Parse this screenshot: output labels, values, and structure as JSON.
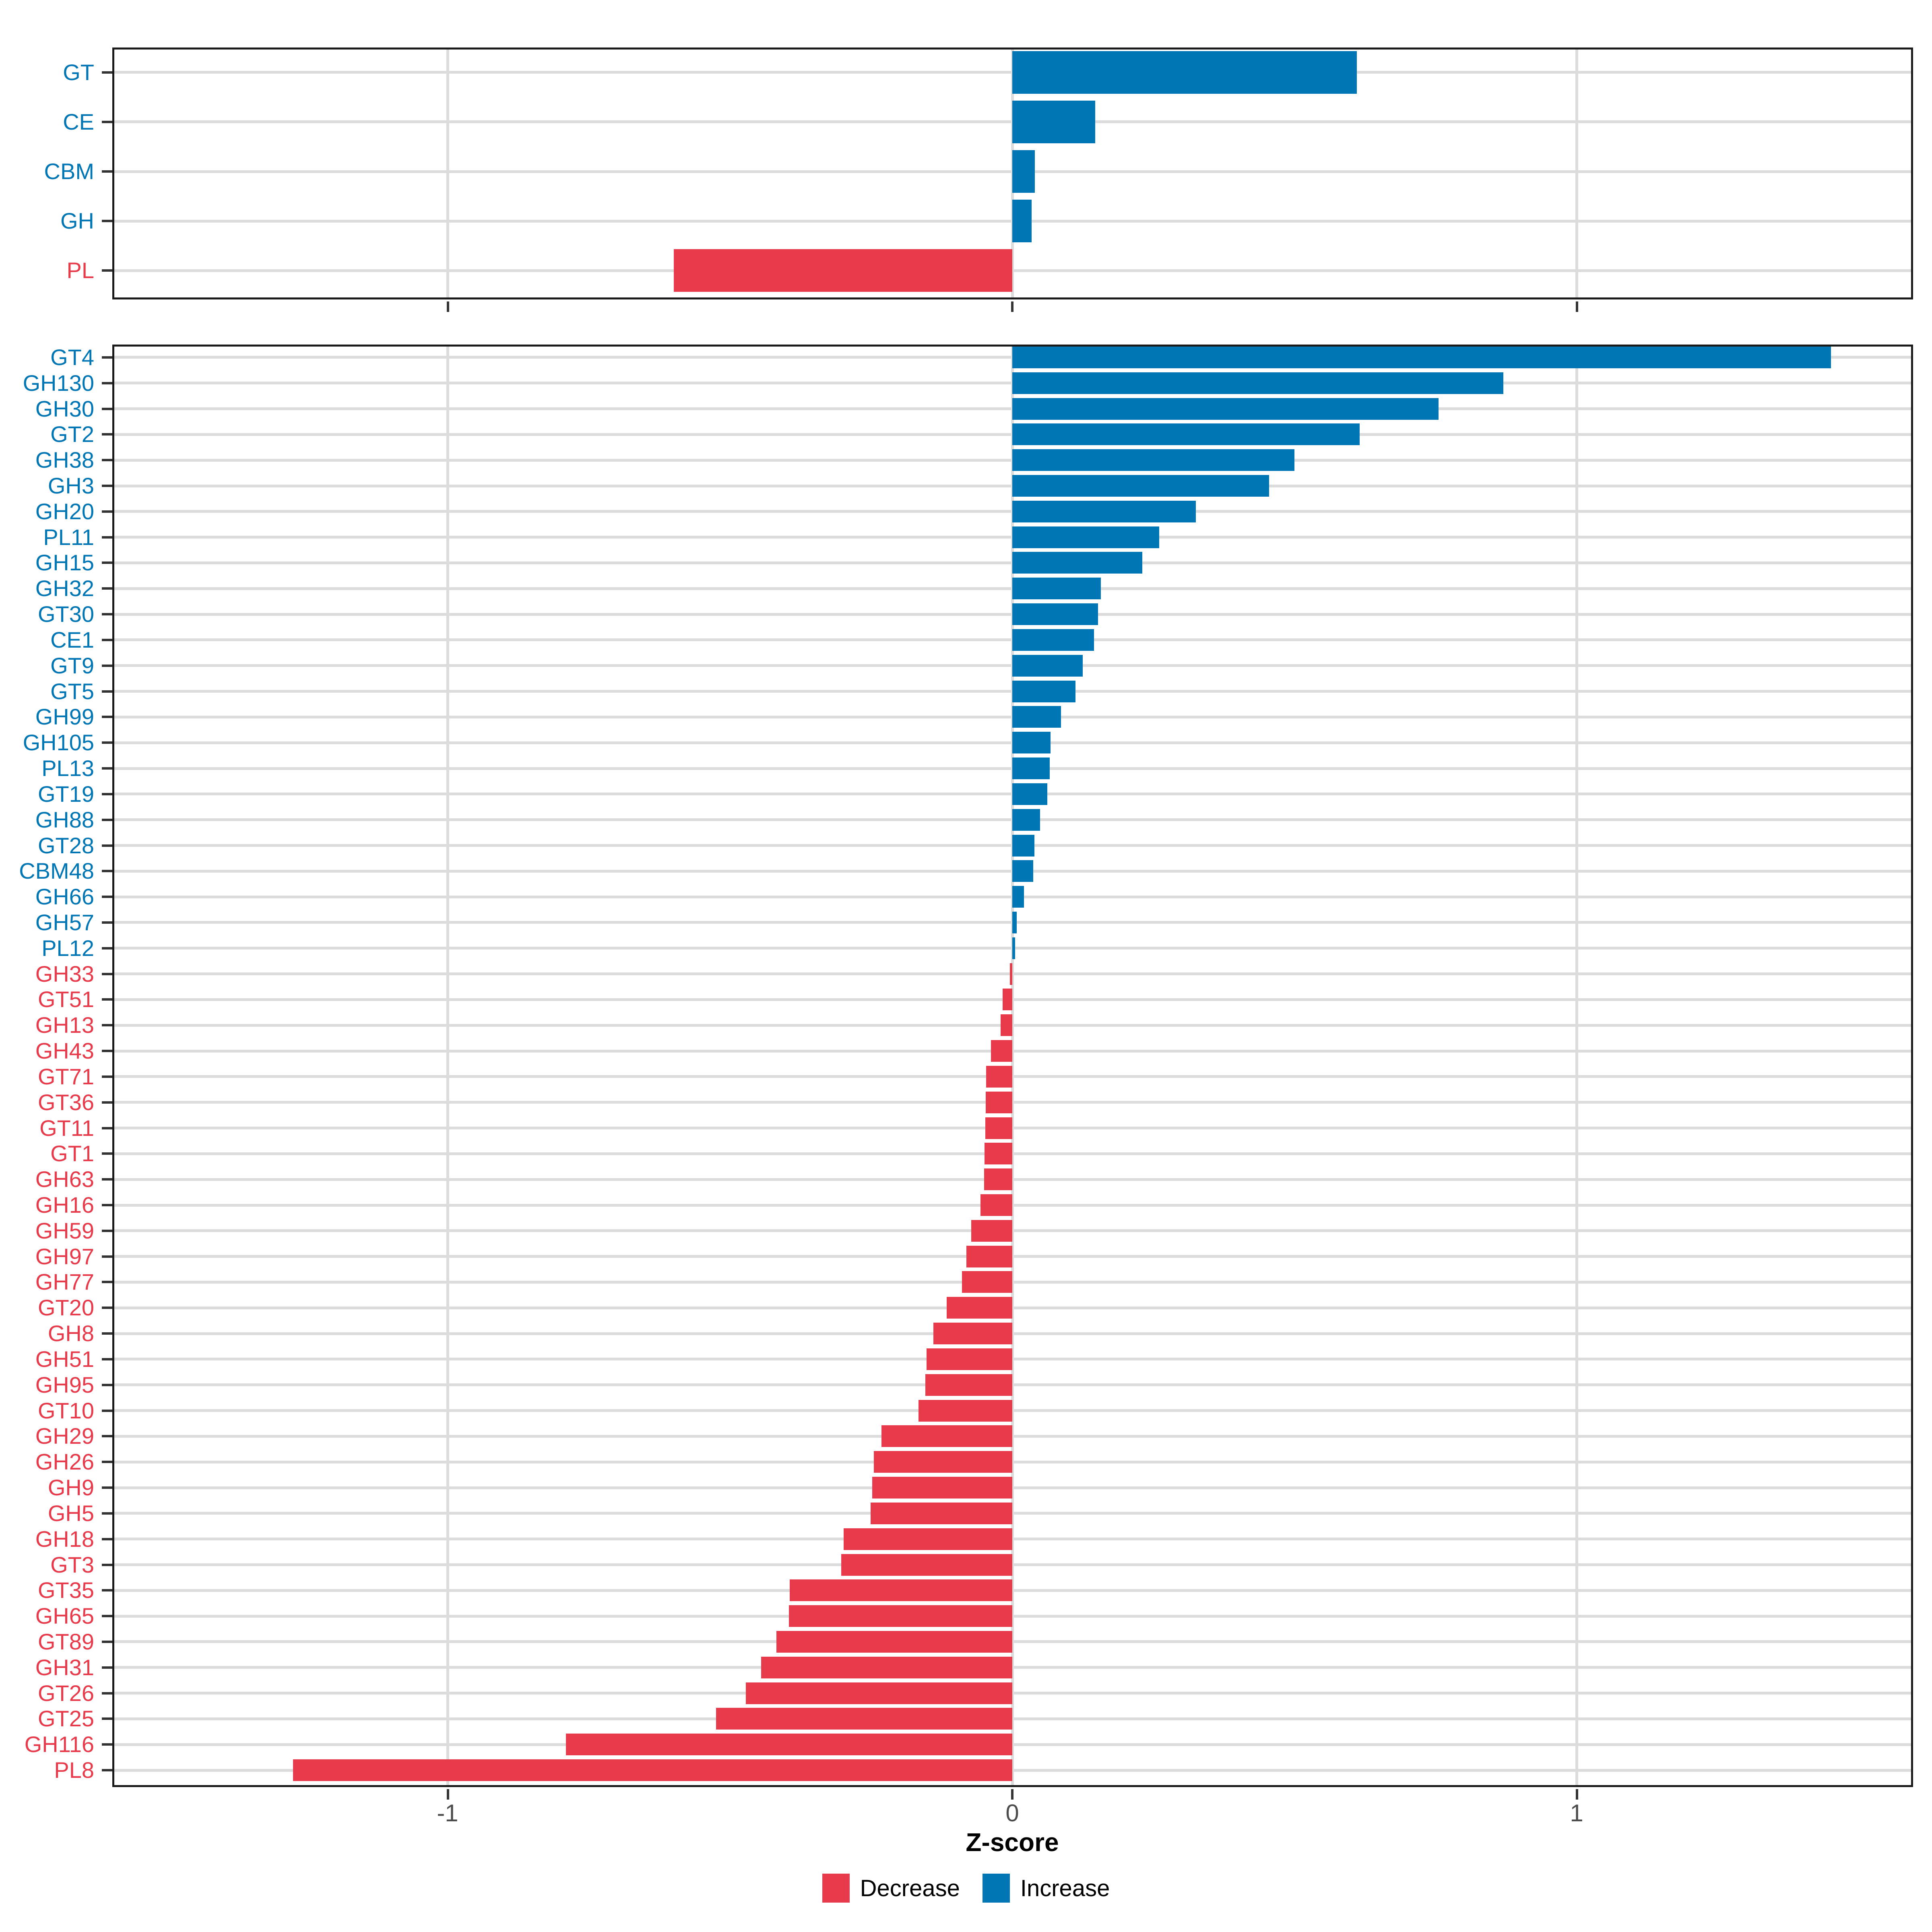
{
  "colors": {
    "increase": "#0076B4",
    "decrease": "#E73B4B",
    "grid": "#DCDCDC",
    "panel_border": "#1A1A1A",
    "tick_mark": "#333333",
    "axis_text": "#4D4D4D"
  },
  "axis": {
    "xlabel": "Z-score",
    "ticks": [
      -1,
      0,
      1
    ],
    "tick_labels": [
      "-1",
      "0",
      "1"
    ],
    "xlim": [
      -1.595,
      1.595
    ]
  },
  "legend": {
    "position": "bottom-center",
    "items": [
      {
        "label": "Decrease",
        "color_key": "decrease"
      },
      {
        "label": "Increase",
        "color_key": "increase"
      }
    ]
  },
  "chart_data": [
    {
      "type": "bar",
      "orientation": "horizontal",
      "panel": "summary",
      "title": "",
      "xlabel": "Z-score",
      "xlim": [
        -1.595,
        1.595
      ],
      "grid": true,
      "categories": [
        "GT",
        "CE",
        "CBM",
        "GH",
        "PL"
      ],
      "values": [
        0.61,
        0.147,
        0.04,
        0.034,
        -0.6
      ]
    },
    {
      "type": "bar",
      "orientation": "horizontal",
      "panel": "families",
      "title": "",
      "xlabel": "Z-score",
      "xlim": [
        -1.595,
        1.595
      ],
      "grid": true,
      "sort": "descending",
      "categories": [
        "GT4",
        "GH130",
        "GH30",
        "GT2",
        "GH38",
        "GH3",
        "GH20",
        "PL11",
        "GH15",
        "GH32",
        "GT30",
        "CE1",
        "GT9",
        "GT5",
        "GH99",
        "GH105",
        "PL13",
        "GT19",
        "GH88",
        "GT28",
        "CBM48",
        "GH66",
        "GH57",
        "PL12",
        "GH33",
        "GT51",
        "GH13",
        "GH43",
        "GT71",
        "GT36",
        "GT11",
        "GT1",
        "GH63",
        "GH16",
        "GH59",
        "GH97",
        "GH77",
        "GT20",
        "GH8",
        "GH51",
        "GH95",
        "GT10",
        "GH29",
        "GH26",
        "GH9",
        "GH5",
        "GH18",
        "GT3",
        "GT35",
        "GH65",
        "GT89",
        "GH31",
        "GT26",
        "GT25",
        "GH116",
        "PL8"
      ],
      "values": [
        1.45,
        0.87,
        0.755,
        0.615,
        0.5,
        0.455,
        0.325,
        0.26,
        0.23,
        0.157,
        0.152,
        0.145,
        0.125,
        0.112,
        0.086,
        0.068,
        0.066,
        0.062,
        0.049,
        0.039,
        0.037,
        0.021,
        0.008,
        0.005,
        -0.004,
        -0.017,
        -0.021,
        -0.038,
        -0.046,
        -0.047,
        -0.048,
        -0.049,
        -0.05,
        -0.056,
        -0.073,
        -0.081,
        -0.089,
        -0.116,
        -0.14,
        -0.152,
        -0.154,
        -0.166,
        -0.232,
        -0.245,
        -0.248,
        -0.251,
        -0.299,
        -0.303,
        -0.394,
        -0.396,
        -0.418,
        -0.445,
        -0.472,
        -0.525,
        -0.791,
        -1.274
      ]
    }
  ]
}
